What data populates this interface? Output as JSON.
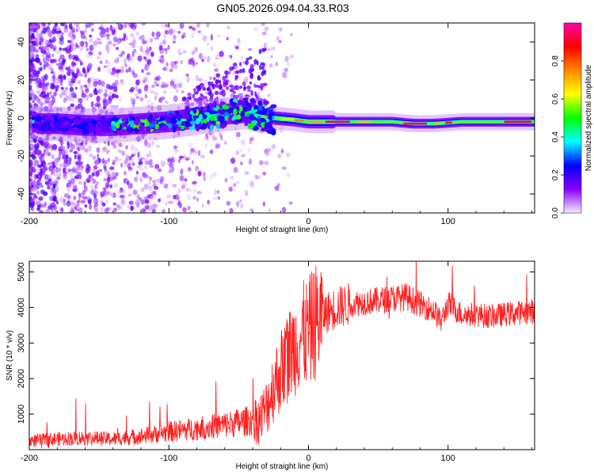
{
  "title": "GN05.2026.094.04.33.R03",
  "chart_data": [
    {
      "type": "heatmap",
      "name": "spectrogram",
      "xlabel": "Height of straight line (km)",
      "ylabel": "Frequency (Hz)",
      "xlim": [
        -200,
        162
      ],
      "ylim": [
        -50,
        50
      ],
      "xticks": [
        -200,
        -100,
        0,
        100
      ],
      "xtick_labels": [
        "-200",
        "-100",
        "0",
        "100"
      ],
      "yticks": [
        -40,
        -20,
        0,
        20,
        40
      ],
      "ytick_labels": [
        "-40",
        "-20",
        "0",
        "20",
        "40"
      ],
      "colorbar": {
        "label": "Normalized spectral amplitude",
        "range": [
          0,
          1
        ],
        "ticks": [
          0.0,
          0.2,
          0.4,
          0.6,
          0.8
        ],
        "tick_labels": [
          "0.0",
          "0.2",
          "0.4",
          "0.6",
          "0.8"
        ],
        "colors": [
          "#f4ecff",
          "#8800ff",
          "#0000ff",
          "#00ffff",
          "#00ff00",
          "#ffff00",
          "#ff8800",
          "#ff0000",
          "#ff00aa"
        ]
      },
      "ridge": [
        {
          "x": -195,
          "y": -3
        },
        {
          "x": -180,
          "y": -3
        },
        {
          "x": -160,
          "y": -4
        },
        {
          "x": -140,
          "y": -4
        },
        {
          "x": -120,
          "y": -3
        },
        {
          "x": -100,
          "y": -2
        },
        {
          "x": -80,
          "y": 0
        },
        {
          "x": -60,
          "y": 2
        },
        {
          "x": -45,
          "y": 3
        },
        {
          "x": -35,
          "y": 1
        },
        {
          "x": -25,
          "y": 0
        },
        {
          "x": -10,
          "y": -1
        },
        {
          "x": 0,
          "y": -2
        },
        {
          "x": 20,
          "y": -2
        },
        {
          "x": 40,
          "y": -2
        },
        {
          "x": 60,
          "y": -2
        },
        {
          "x": 75,
          "y": -3
        },
        {
          "x": 90,
          "y": -3
        },
        {
          "x": 110,
          "y": -2
        },
        {
          "x": 140,
          "y": -2
        },
        {
          "x": 162,
          "y": -2
        }
      ]
    },
    {
      "type": "line",
      "name": "snr",
      "xlabel": "Height of straight line (km)",
      "ylabel": "SNR (10 * v/v)",
      "xlim": [
        -200,
        162
      ],
      "ylim": [
        0,
        5300
      ],
      "xticks": [
        -200,
        -100,
        0,
        100
      ],
      "xtick_labels": [
        "-200",
        "-100",
        "0",
        "100"
      ],
      "yticks": [
        1000,
        2000,
        3000,
        4000,
        5000
      ],
      "ytick_labels": [
        "1000",
        "2000",
        "3000",
        "4000",
        "5000"
      ],
      "series": [
        {
          "name": "SNR",
          "color": "#ff2020",
          "x": [
            -200,
            -180,
            -160,
            -140,
            -120,
            -100,
            -80,
            -60,
            -45,
            -35,
            -30,
            -25,
            -20,
            -15,
            -10,
            -5,
            0,
            5,
            10,
            15,
            20,
            30,
            40,
            50,
            60,
            70,
            80,
            90,
            95,
            100,
            110,
            120,
            130,
            140,
            150,
            162
          ],
          "y": [
            250,
            300,
            330,
            300,
            380,
            500,
            600,
            700,
            800,
            850,
            1200,
            1800,
            2200,
            2600,
            2900,
            3200,
            3300,
            3600,
            3800,
            3900,
            4000,
            4100,
            4150,
            4200,
            4250,
            4300,
            4100,
            3900,
            3600,
            4100,
            3800,
            3800,
            3750,
            3800,
            3850,
            3900
          ]
        }
      ]
    }
  ]
}
